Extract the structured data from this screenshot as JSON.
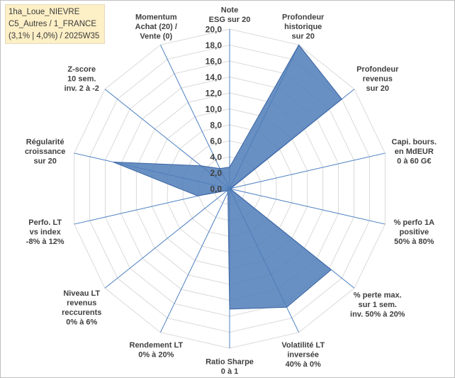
{
  "info_box": {
    "line1": "1ha_Loue_NIEVRE",
    "line2": "C5_Autres / 1_FRANCE",
    "line3": "(3,1% | 4,0%) / 2025W35"
  },
  "colors": {
    "fill": "#4f7db9",
    "stroke": "#3a64a2",
    "grid": "#d9d9d9",
    "spoke": "#4a7fc1"
  },
  "chart_data": {
    "type": "radar",
    "rmax": 20,
    "ticks": [
      "0,0",
      "2,0",
      "4,0",
      "6,0",
      "8,0",
      "10,0",
      "12,0",
      "14,0",
      "16,0",
      "18,0",
      "20,0"
    ],
    "axes": [
      [
        "Note",
        "ESG sur 20"
      ],
      [
        "Profondeur",
        "historique",
        "sur 20"
      ],
      [
        "Profondeur",
        "revenus",
        "sur 20"
      ],
      [
        "Capi. bours.",
        "en MdEUR",
        "0 à 60 G€"
      ],
      [
        "% perfo 1A",
        "positive",
        "50% à 80%"
      ],
      [
        "% perte max.",
        "sur 1 sem.",
        "inv. 50% à 20%"
      ],
      [
        "Volatilité LT",
        "inversée",
        "40% à 0%"
      ],
      [
        "Ratio Sharpe",
        "0 à 1"
      ],
      [
        "Rendement LT",
        "0% à 20%"
      ],
      [
        "Niveau LT",
        "revenus",
        "reccurents",
        "0% à 6%"
      ],
      [
        "Perfo. LT",
        "vs index",
        "-8% à 12%"
      ],
      [
        "Régularité",
        "croissance",
        "sur 20"
      ],
      [
        "Z-score",
        "10 sem.",
        "inv. 2 à -2"
      ],
      [
        "Momentum",
        "Achat (20) /",
        "Vente (0)"
      ]
    ],
    "values": [
      2.7,
      20.0,
      18.0,
      0.2,
      0.1,
      16.3,
      16.5,
      15.1,
      0.5,
      0.4,
      4.1,
      15.0,
      4.6,
      2.8
    ]
  }
}
